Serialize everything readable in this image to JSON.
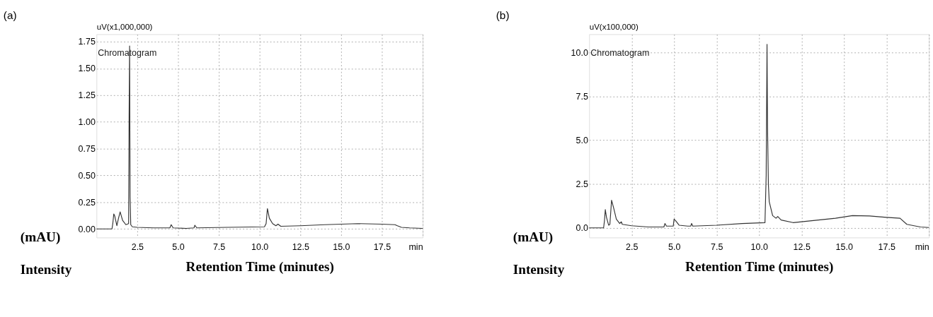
{
  "chart_data": [
    {
      "type": "line",
      "title": "(a)",
      "xlabel": "Retention Time (minutes)",
      "ylabel": "uV(x1,000,000)",
      "annotations": [
        "Chromatogram",
        "(mAU)",
        "Intensity"
      ],
      "grid": true,
      "marker": "none",
      "line_style": "solid",
      "xlim": [
        0,
        20
      ],
      "xticks": [
        2.5,
        {
          "value": 5,
          "label": "5.0"
        },
        7.5,
        {
          "value": 10,
          "label": "10.0"
        },
        12.5,
        {
          "value": 15,
          "label": "15.0"
        },
        17.5,
        {
          "value": 20,
          "label": "min"
        }
      ],
      "ylim": [
        -0.08,
        1.82
      ],
      "yticks": [
        {
          "value": 0,
          "label": "0.00"
        },
        0.25,
        {
          "value": 0.5,
          "label": "0.50"
        },
        0.75,
        {
          "value": 1.0,
          "label": "1.00"
        },
        1.25,
        {
          "value": 1.5,
          "label": "1.50"
        },
        1.75
      ],
      "series": [
        {
          "color": "#333333",
          "x": [
            0,
            0.95,
            1.0,
            1.06,
            1.12,
            1.25,
            1.35,
            1.45,
            1.6,
            1.8,
            1.97,
            2.0,
            2.03,
            2.06,
            2.1,
            2.2,
            2.5,
            3.5,
            4.5,
            4.58,
            4.7,
            5.5,
            5.98,
            6.03,
            6.15,
            8.0,
            10.3,
            10.4,
            10.48,
            10.6,
            10.8,
            11.0,
            11.13,
            11.3,
            12.5,
            14.0,
            16.0,
            17.5,
            18.3,
            18.45,
            18.7,
            19.2,
            20.0
          ],
          "values": [
            0,
            0,
            0.05,
            0.14,
            0.12,
            0.03,
            0.1,
            0.16,
            0.08,
            0.04,
            0.05,
            1.05,
            1.71,
            0.3,
            0.04,
            0.02,
            0.015,
            0.01,
            0.01,
            0.04,
            0.01,
            0.005,
            0.01,
            0.035,
            0.01,
            0.015,
            0.02,
            0.05,
            0.19,
            0.1,
            0.05,
            0.03,
            0.045,
            0.025,
            0.03,
            0.04,
            0.05,
            0.045,
            0.04,
            0.03,
            0.015,
            0.01,
            0.005
          ]
        }
      ]
    },
    {
      "type": "line",
      "title": "(b)",
      "xlabel": "Retention Time (minutes)",
      "ylabel": "uV(x100,000)",
      "annotations": [
        "Chromatogram",
        "(mAU)",
        "Intensity"
      ],
      "grid": true,
      "marker": "none",
      "line_style": "solid",
      "xlim": [
        0,
        20
      ],
      "xticks": [
        2.5,
        {
          "value": 5,
          "label": "5.0"
        },
        7.5,
        {
          "value": 10,
          "label": "10.0"
        },
        12.5,
        {
          "value": 15,
          "label": "15.0"
        },
        17.5,
        {
          "value": 20,
          "label": "min"
        }
      ],
      "ylim": [
        -0.55,
        11.05
      ],
      "yticks": [
        {
          "value": 0,
          "label": "0.0"
        },
        2.5,
        {
          "value": 5,
          "label": "5.0"
        },
        7.5,
        {
          "value": 10,
          "label": "10.0"
        }
      ],
      "series": [
        {
          "color": "#333333",
          "x": [
            0,
            0.85,
            0.9,
            0.95,
            1.02,
            1.15,
            1.22,
            1.32,
            1.45,
            1.6,
            1.8,
            1.89,
            1.95,
            2.5,
            3.5,
            4.4,
            4.46,
            4.55,
            4.95,
            5.0,
            5.1,
            5.3,
            5.8,
            5.98,
            6.03,
            6.1,
            7.5,
            9.0,
            10.35,
            10.42,
            10.47,
            10.5,
            10.55,
            10.6,
            10.8,
            11.0,
            11.1,
            11.3,
            12.0,
            12.5,
            13.5,
            14.5,
            15.5,
            16.5,
            17.5,
            18.3,
            18.7,
            19.5,
            20.0
          ],
          "values": [
            0,
            0,
            0.4,
            1.04,
            0.6,
            0.15,
            0.2,
            1.58,
            1.1,
            0.5,
            0.25,
            0.35,
            0.2,
            0.12,
            0.05,
            0.05,
            0.25,
            0.1,
            0.1,
            0.5,
            0.4,
            0.15,
            0.1,
            0.1,
            0.25,
            0.1,
            0.15,
            0.25,
            0.3,
            3.0,
            10.47,
            5.8,
            2.5,
            1.5,
            0.7,
            0.55,
            0.65,
            0.45,
            0.3,
            0.35,
            0.45,
            0.55,
            0.7,
            0.68,
            0.6,
            0.55,
            0.2,
            0.05,
            0.02
          ]
        }
      ]
    }
  ]
}
